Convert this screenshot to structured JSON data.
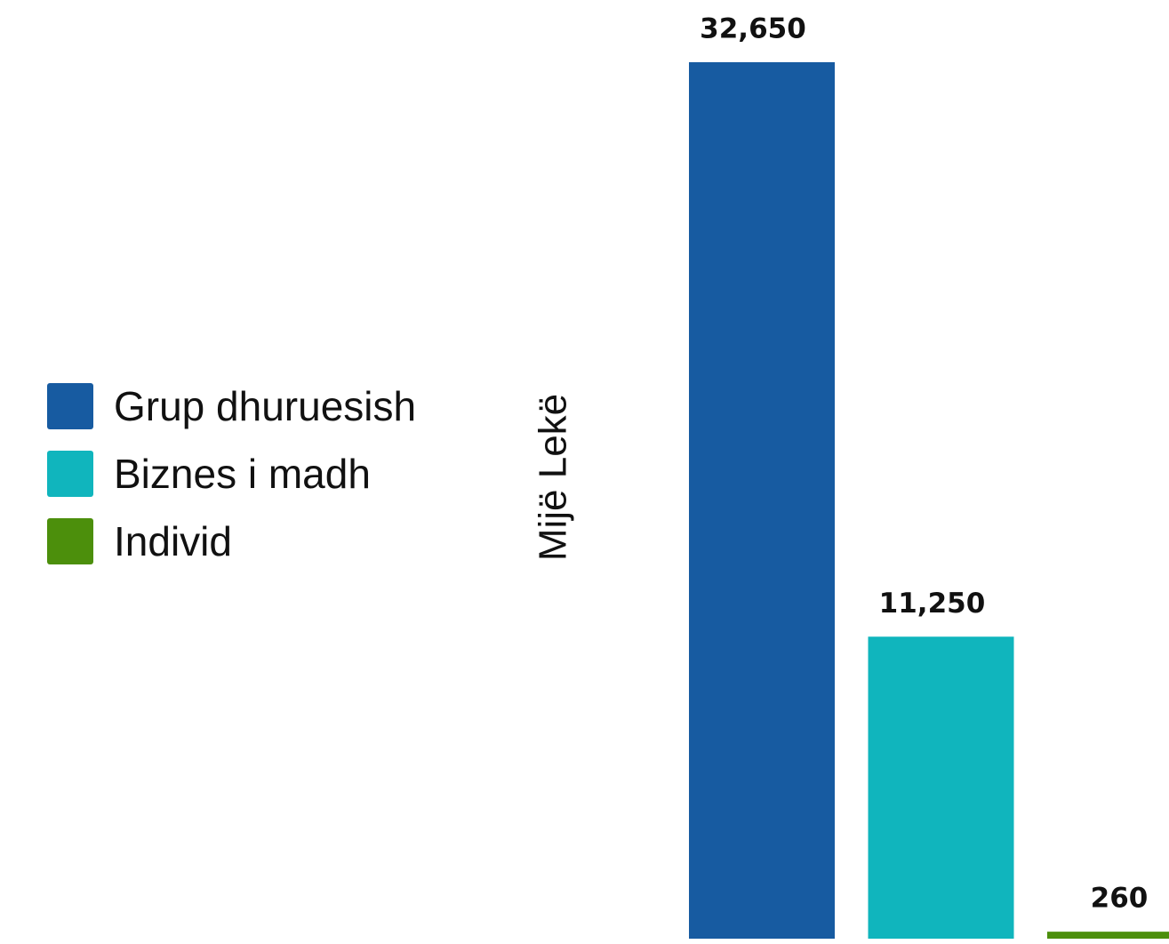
{
  "chart_data": {
    "type": "bar",
    "ylabel": "Mijë Lekë",
    "series": [
      {
        "name": "Grup dhuruesish",
        "color": "#175ba1",
        "values": [
          32650
        ],
        "value_labels": [
          "32,650"
        ]
      },
      {
        "name": "Biznes i madh",
        "color": "#10b5bd",
        "values": [
          11250
        ],
        "value_labels": [
          "11,250"
        ]
      },
      {
        "name": "Individ",
        "color": "#4c8f0c",
        "values": [
          260
        ],
        "value_labels": [
          "260"
        ]
      }
    ]
  }
}
